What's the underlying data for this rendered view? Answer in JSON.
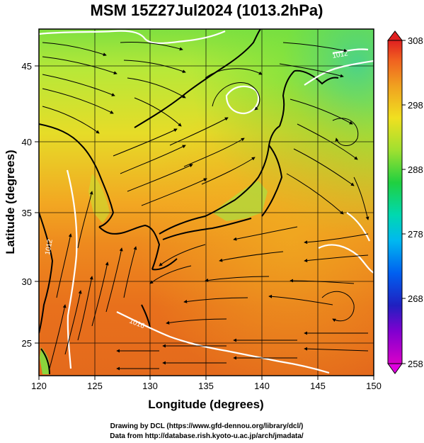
{
  "title": "MSM 15Z27Jul2024 (1013.2hPa)",
  "xaxis": {
    "label": "Longitude (degrees)",
    "ticks": [
      "120",
      "125",
      "130",
      "135",
      "140",
      "145",
      "150"
    ],
    "range": [
      120,
      150
    ]
  },
  "yaxis": {
    "label": "Latitude  (degrees)",
    "ticks": [
      "25",
      "30",
      "35",
      "40",
      "45"
    ],
    "range": [
      22.5,
      47.5
    ]
  },
  "colorbar": {
    "ticks": [
      "308",
      "298",
      "288",
      "278",
      "268",
      "258"
    ],
    "range": [
      258,
      308
    ]
  },
  "contour_labels": [
    "1012",
    "1016",
    "1012"
  ],
  "credits": {
    "line1": "Drawing by DCL (https://www.gfd-dennou.org/library/dcl/)",
    "line2": "Data from http://database.rish.kyoto-u.ac.jp/arch/jmadata/"
  },
  "colors": {
    "ocean_warm": "#e86a1c",
    "ocean_mid": "#f0a020",
    "land_mid": "#d8e020",
    "land_cool": "#88e040",
    "contour": "#ffffff",
    "streamline": "#000000"
  }
}
